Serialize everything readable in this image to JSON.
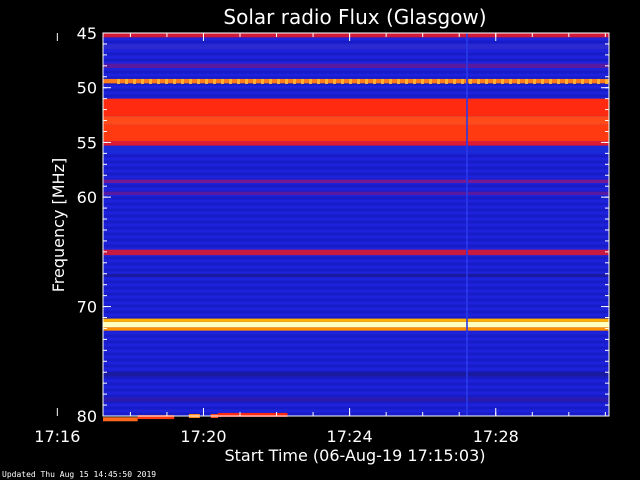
{
  "chart_data": {
    "type": "heatmap",
    "title": "Solar radio Flux (Glasgow)",
    "xlabel": "Start Time (06-Aug-19 17:15:03)",
    "ylabel": "Frequency [MHz]",
    "footer": "Updated Thu Aug 15 14:45:50 2019",
    "x_range_minutes": [
      17.25,
      31.1
    ],
    "y_range_mhz": [
      45,
      80
    ],
    "x_ticks": [
      {
        "minute": 16,
        "label": "17:16"
      },
      {
        "minute": 20,
        "label": "17:20"
      },
      {
        "minute": 24,
        "label": "17:24"
      },
      {
        "minute": 28,
        "label": "17:28"
      }
    ],
    "y_ticks": [
      {
        "mhz": 45,
        "label": "45"
      },
      {
        "mhz": 50,
        "label": "50"
      },
      {
        "mhz": 55,
        "label": "55"
      },
      {
        "mhz": 60,
        "label": "60"
      },
      {
        "mhz": 70,
        "label": "70"
      },
      {
        "mhz": 80,
        "label": "80"
      }
    ],
    "background_color": "#1a1fd6",
    "bands": [
      {
        "from": 45.0,
        "to": 45.4,
        "color": "#d01a3a"
      },
      {
        "from": 46.0,
        "to": 46.5,
        "color": "#2a2ad0"
      },
      {
        "from": 47.8,
        "to": 48.2,
        "color": "#5a1aa0"
      },
      {
        "from": 49.2,
        "to": 49.6,
        "color": "#ff7a1a"
      },
      {
        "from": 51.0,
        "to": 52.6,
        "color": "#ff2a10"
      },
      {
        "from": 52.6,
        "to": 53.4,
        "color": "#ff4a1a"
      },
      {
        "from": 53.4,
        "to": 54.9,
        "color": "#ff3a10"
      },
      {
        "from": 54.9,
        "to": 55.3,
        "color": "#e01a30"
      },
      {
        "from": 55.3,
        "to": 56.0,
        "color": "#1a2ad8"
      },
      {
        "from": 58.4,
        "to": 58.7,
        "color": "#7a1a90"
      },
      {
        "from": 59.5,
        "to": 59.8,
        "color": "#5a1aa0"
      },
      {
        "from": 64.8,
        "to": 65.3,
        "color": "#c81a40"
      },
      {
        "from": 67.0,
        "to": 67.3,
        "color": "#1a1aa0"
      },
      {
        "from": 71.4,
        "to": 71.9,
        "color": "#ffffc0"
      },
      {
        "from": 71.1,
        "to": 71.4,
        "color": "#ffb000"
      },
      {
        "from": 71.9,
        "to": 72.2,
        "color": "#ff9000"
      },
      {
        "from": 76.0,
        "to": 76.4,
        "color": "#1a1aa0"
      },
      {
        "from": 78.3,
        "to": 78.7,
        "color": "#2a1ab0"
      }
    ],
    "burst_segments": [
      {
        "x0": 17.25,
        "x1": 18.2,
        "mhz": 80.3,
        "color": "#ff6a1a"
      },
      {
        "x0": 18.2,
        "x1": 19.2,
        "mhz": 80.1,
        "color": "#ff3a10"
      },
      {
        "x0": 19.6,
        "x1": 19.9,
        "mhz": 80.0,
        "color": "#ff8a1a"
      },
      {
        "x0": 20.2,
        "x1": 20.4,
        "mhz": 80.0,
        "color": "#ff4a1a"
      },
      {
        "x0": 20.4,
        "x1": 22.3,
        "mhz": 79.9,
        "color": "#ff2a10"
      }
    ]
  }
}
